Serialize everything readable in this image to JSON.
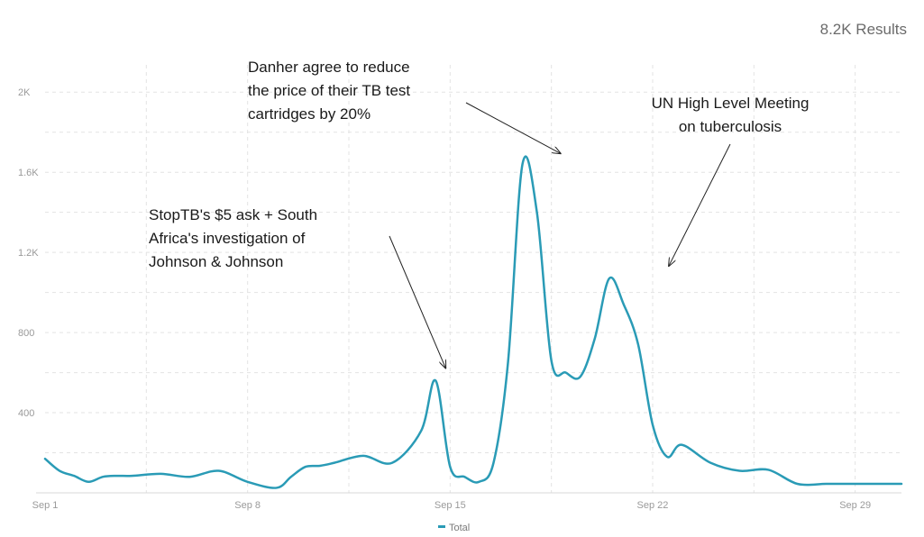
{
  "results_label": "8.2K Results",
  "chart_data": {
    "type": "line",
    "title": "",
    "xlabel": "",
    "ylabel": "",
    "ylim": [
      0,
      2100
    ],
    "yticks": [
      400,
      800,
      1200,
      1600,
      2000
    ],
    "ytick_labels": [
      "400",
      "800",
      "1.2K",
      "1.6K",
      "2K"
    ],
    "xlim": [
      1,
      30.6
    ],
    "xticks": [
      1,
      8,
      15,
      22,
      29
    ],
    "xtick_labels": [
      "Sep 1",
      "Sep 8",
      "Sep 15",
      "Sep 22",
      "Sep 29"
    ],
    "grid": true,
    "legend": "bottom-center",
    "colors": {
      "line": "#2a9bb6",
      "grid": "#e3e3e3",
      "axis": "#d8d8d8"
    },
    "series": [
      {
        "name": "Total",
        "x": [
          1,
          1.5,
          2,
          2.5,
          3,
          3.5,
          4,
          5,
          6,
          7,
          8,
          9,
          9.5,
          10,
          10.5,
          11,
          12,
          13,
          14,
          14.5,
          15,
          15.5,
          16,
          16.5,
          17,
          17.5,
          18,
          18.5,
          19,
          19.5,
          20,
          20.5,
          21,
          21.5,
          22,
          22.5,
          23,
          24,
          25,
          26,
          27,
          28,
          29,
          30,
          30.6
        ],
        "values": [
          170,
          110,
          85,
          55,
          80,
          85,
          85,
          95,
          80,
          110,
          55,
          25,
          80,
          130,
          135,
          150,
          185,
          150,
          310,
          560,
          130,
          80,
          55,
          150,
          650,
          1640,
          1400,
          660,
          600,
          580,
          770,
          1070,
          940,
          740,
          340,
          180,
          240,
          150,
          110,
          115,
          45,
          45,
          45,
          45,
          45
        ]
      }
    ],
    "annotations": [
      {
        "lines": [
          "StopTB's $5 ask + South",
          "Africa's investigation of",
          "Johnson & Johnson"
        ],
        "target_x": 15,
        "target_y": 560
      },
      {
        "lines": [
          "Danher agree to reduce",
          "the price of their TB test",
          "cartridges by 20%"
        ],
        "target_x": 19,
        "target_y": 1640
      },
      {
        "lines": [
          "UN High Level Meeting",
          "on tuberculosis"
        ],
        "target_x": 22,
        "target_y": 1070
      }
    ]
  }
}
